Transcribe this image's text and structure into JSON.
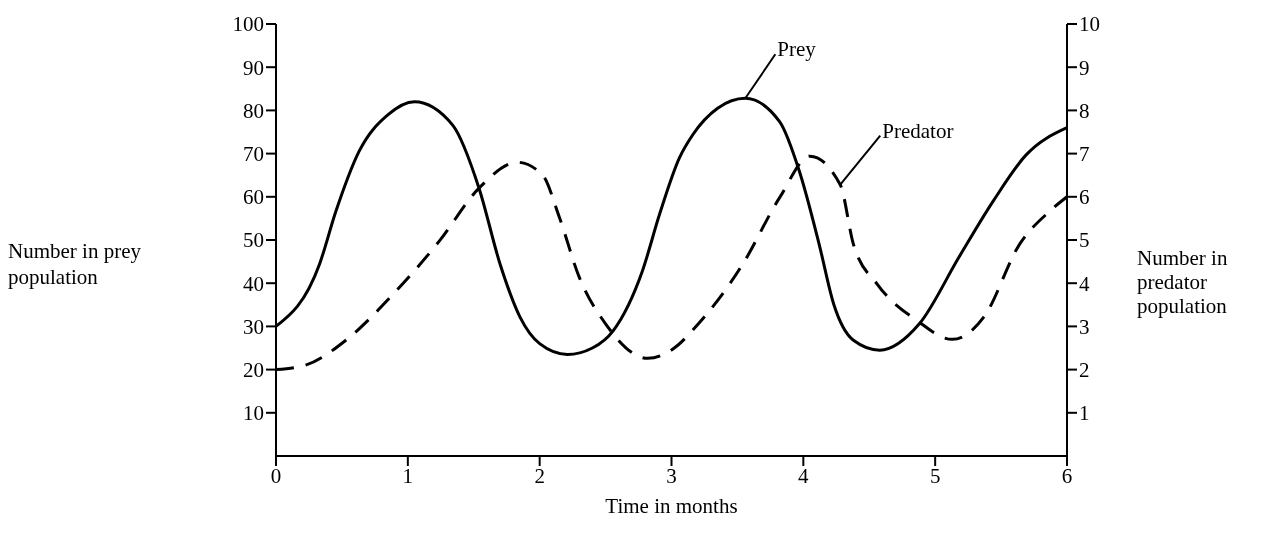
{
  "chart_data": {
    "type": "line",
    "xlabel": "Time in months",
    "ylabel": "Number in prey population",
    "y2label": "Number in predator population",
    "xlim": [
      0,
      6
    ],
    "xticks": [
      0,
      1,
      2,
      3,
      4,
      5,
      6
    ],
    "ylim": [
      0,
      100
    ],
    "yticks": [
      10,
      20,
      30,
      40,
      50,
      60,
      70,
      80,
      90,
      100
    ],
    "y2lim": [
      0,
      10
    ],
    "y2ticks": [
      1,
      2,
      3,
      4,
      5,
      6,
      7,
      8,
      9,
      10
    ],
    "grid": false,
    "legend": false,
    "marker": "none",
    "series": [
      {
        "name": "Prey",
        "color": "#000000",
        "line_style": "solid",
        "x": [
          0,
          0.33,
          0.455,
          0.63,
          0.85,
          1.05,
          1.34,
          1.54,
          1.7,
          1.85,
          2.0,
          2.21,
          2.4,
          2.56,
          2.78,
          2.91,
          3.06,
          3.16,
          3.35,
          3.56,
          3.82,
          3.97,
          4.12,
          4.23,
          4.38,
          4.58,
          4.88,
          5.18,
          5.44,
          5.69,
          6
        ],
        "values": [
          30,
          44.4,
          56.7,
          70.5,
          79,
          82,
          76.6,
          62,
          44.4,
          32.2,
          26,
          23.5,
          25,
          29.1,
          42.9,
          56,
          69,
          74.3,
          80.5,
          82.8,
          77.4,
          65.9,
          49,
          35.2,
          26.8,
          24.5,
          30.6,
          46,
          59,
          69.7,
          76
        ]
      },
      {
        "name": "Predator",
        "color": "#000000",
        "line_style": "dashed",
        "axis": "y2",
        "x": [
          0,
          0.23,
          0.53,
          0.89,
          1.24,
          1.54,
          1.83,
          2.02,
          2.15,
          2.3,
          2.5,
          2.82,
          3.05,
          3.16,
          3.54,
          3.82,
          4.05,
          4.28,
          4.38,
          4.56,
          4.86,
          5.13,
          5.37,
          5.64,
          5.87,
          6
        ],
        "values": [
          2.0,
          2.11,
          2.68,
          3.75,
          4.98,
          6.2,
          6.8,
          6.51,
          5.52,
          4.14,
          3.06,
          2.26,
          2.57,
          2.91,
          4.44,
          5.98,
          6.94,
          6.28,
          4.9,
          3.98,
          3.14,
          2.7,
          3.22,
          4.9,
          5.67,
          6.0
        ]
      }
    ]
  }
}
